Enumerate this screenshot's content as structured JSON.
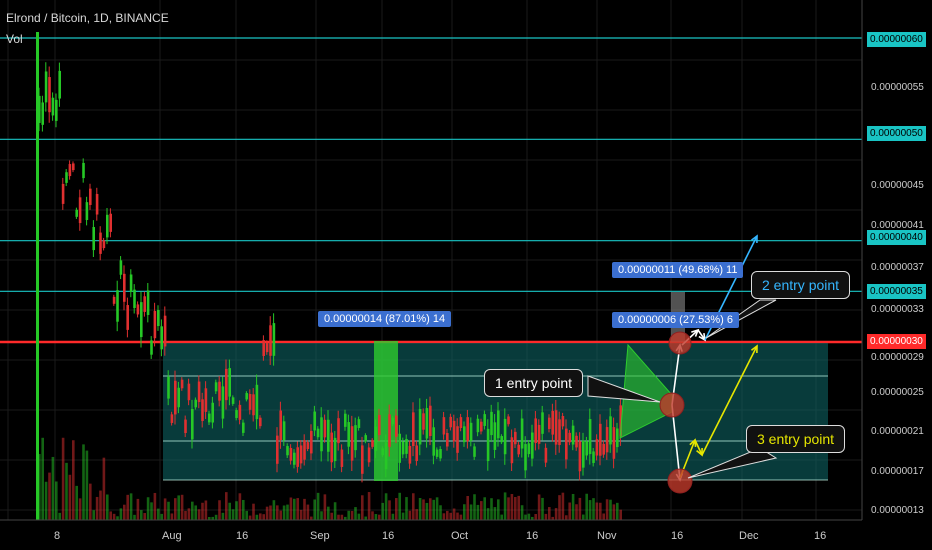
{
  "header": {
    "title": "Elrond / Bitcoin, 1D, BINANCE",
    "volume_label": "Vol"
  },
  "colors": {
    "bull": "#26c826",
    "bear": "#e03030",
    "zone": "#0e6b6b",
    "cyan_line": "#19c4c4",
    "red_line": "#ff2a2a",
    "tag_blue": "#3b6fd0",
    "arrow_yellow": "#e6e600",
    "arrow_cyan": "#35b6ff"
  },
  "chart_data": {
    "type": "candlestick",
    "title": "Elrond / Bitcoin, 1D, BINANCE",
    "ylim": [
      1.2e-07,
      6.5e-07
    ],
    "y_ticks": [
      "0.00000060",
      "0.00000055",
      "0.00000050",
      "0.00000045",
      "0.00000041",
      "0.00000040",
      "0.00000037",
      "0.00000035",
      "0.00000033",
      "0.00000030",
      "0.00000029",
      "0.00000025",
      "0.00000021",
      "0.00000017",
      "0.00000013"
    ],
    "y_highlighted": [
      "0.00000060",
      "0.00000050",
      "0.00000040",
      "0.00000035",
      "0.00000030"
    ],
    "x_ticks": [
      "8",
      "Aug",
      "16",
      "Sep",
      "16",
      "Oct",
      "16",
      "Nov",
      "16",
      "Dec",
      "16"
    ],
    "horizontal_levels": [
      {
        "value": 6e-07,
        "color": "cyan"
      },
      {
        "value": 5e-07,
        "color": "cyan"
      },
      {
        "value": 4e-07,
        "color": "cyan"
      },
      {
        "value": 3.5e-07,
        "color": "cyan"
      },
      {
        "value": 3e-07,
        "color": "red"
      }
    ],
    "measure_tags": [
      "0.00000014 (87.01%) 14",
      "0.00000011 (49.68%) 11",
      "0.00000006 (27.53%) 6"
    ],
    "callouts": [
      "1 entry point",
      "2 entry point",
      "3 entry point"
    ]
  }
}
